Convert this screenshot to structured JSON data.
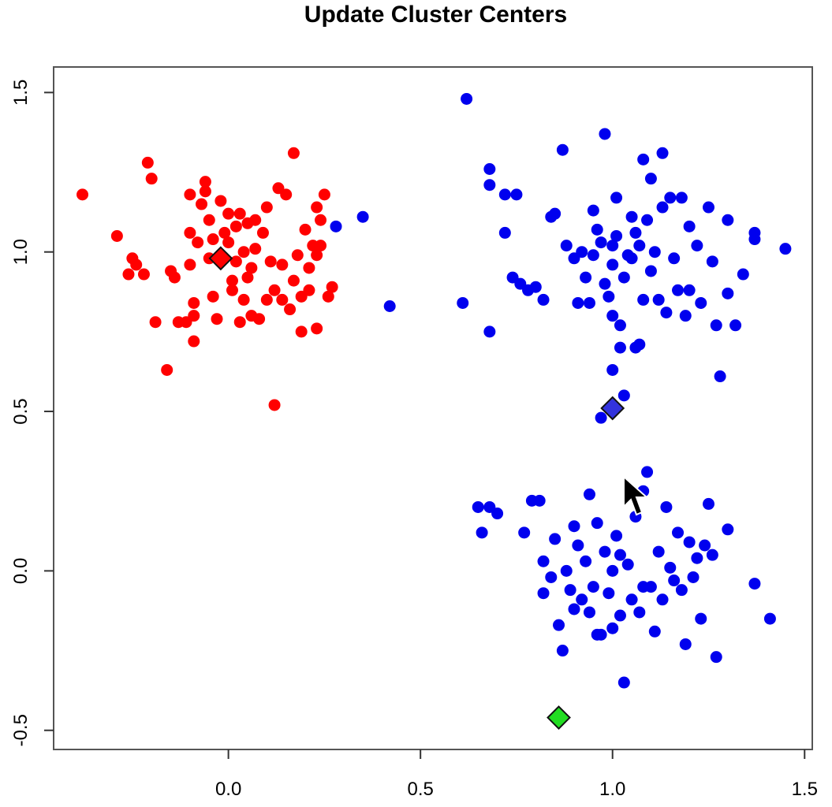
{
  "chart_data": {
    "type": "scatter",
    "title": "Update Cluster Centers",
    "xlabel": "",
    "ylabel": "",
    "xlim": [
      -0.455,
      1.52
    ],
    "ylim": [
      -0.56,
      1.58
    ],
    "xticks": [
      "0.0",
      "0.5",
      "1.0",
      "1.5"
    ],
    "yticks": [
      "-0.5",
      "0.0",
      "0.5",
      "1.0",
      "1.5"
    ],
    "xtick_values": [
      0.0,
      0.5,
      1.0,
      1.5
    ],
    "ytick_values": [
      -0.5,
      0.0,
      0.5,
      1.0,
      1.5
    ],
    "grid": false,
    "series": [
      {
        "color": "#ff0000",
        "points": [
          [
            -0.38,
            1.18
          ],
          [
            -0.29,
            1.05
          ],
          [
            -0.26,
            0.93
          ],
          [
            -0.25,
            0.98
          ],
          [
            -0.24,
            0.96
          ],
          [
            -0.22,
            0.93
          ],
          [
            -0.21,
            1.28
          ],
          [
            -0.2,
            1.23
          ],
          [
            -0.19,
            0.78
          ],
          [
            -0.16,
            0.63
          ],
          [
            -0.15,
            0.94
          ],
          [
            -0.14,
            0.92
          ],
          [
            -0.13,
            0.78
          ],
          [
            -0.11,
            0.78
          ],
          [
            -0.1,
            1.18
          ],
          [
            -0.1,
            1.06
          ],
          [
            -0.1,
            0.96
          ],
          [
            -0.09,
            0.84
          ],
          [
            -0.09,
            0.8
          ],
          [
            -0.09,
            0.72
          ],
          [
            -0.08,
            1.03
          ],
          [
            -0.07,
            1.15
          ],
          [
            -0.06,
            1.22
          ],
          [
            -0.06,
            1.19
          ],
          [
            -0.05,
            1.1
          ],
          [
            -0.05,
            0.98
          ],
          [
            -0.04,
            0.86
          ],
          [
            -0.04,
            1.04
          ],
          [
            -0.03,
            0.79
          ],
          [
            -0.02,
            1.16
          ],
          [
            -0.01,
            1.06
          ],
          [
            0.0,
            1.12
          ],
          [
            0.0,
            1.03
          ],
          [
            0.01,
            0.91
          ],
          [
            0.01,
            0.88
          ],
          [
            0.02,
            1.08
          ],
          [
            0.02,
            0.97
          ],
          [
            0.03,
            0.78
          ],
          [
            0.03,
            1.12
          ],
          [
            0.04,
            1.0
          ],
          [
            0.04,
            0.85
          ],
          [
            0.05,
            1.09
          ],
          [
            0.05,
            0.92
          ],
          [
            0.06,
            0.8
          ],
          [
            0.06,
            0.95
          ],
          [
            0.07,
            1.01
          ],
          [
            0.07,
            1.1
          ],
          [
            0.08,
            0.79
          ],
          [
            0.09,
            1.06
          ],
          [
            0.1,
            1.14
          ],
          [
            0.1,
            0.85
          ],
          [
            0.11,
            0.97
          ],
          [
            0.12,
            0.88
          ],
          [
            0.12,
            0.52
          ],
          [
            0.13,
            1.2
          ],
          [
            0.14,
            0.85
          ],
          [
            0.14,
            0.96
          ],
          [
            0.15,
            1.18
          ],
          [
            0.16,
            0.82
          ],
          [
            0.17,
            1.31
          ],
          [
            0.17,
            0.91
          ],
          [
            0.18,
            0.99
          ],
          [
            0.19,
            0.86
          ],
          [
            0.19,
            0.75
          ],
          [
            0.2,
            1.07
          ],
          [
            0.21,
            0.95
          ],
          [
            0.21,
            0.88
          ],
          [
            0.22,
            1.02
          ],
          [
            0.23,
            1.14
          ],
          [
            0.23,
            0.99
          ],
          [
            0.23,
            0.76
          ],
          [
            0.24,
            1.1
          ],
          [
            0.24,
            1.02
          ],
          [
            0.25,
            1.18
          ],
          [
            0.26,
            0.86
          ],
          [
            0.27,
            0.89
          ]
        ]
      },
      {
        "color": "#0000ee",
        "points": [
          [
            0.35,
            1.11
          ],
          [
            0.28,
            1.08
          ],
          [
            0.42,
            0.83
          ],
          [
            0.62,
            1.48
          ],
          [
            0.61,
            0.84
          ],
          [
            0.68,
            1.26
          ],
          [
            0.68,
            1.21
          ],
          [
            0.72,
            1.18
          ],
          [
            0.75,
            1.18
          ],
          [
            0.72,
            1.06
          ],
          [
            0.68,
            0.75
          ],
          [
            0.74,
            0.92
          ],
          [
            0.76,
            0.9
          ],
          [
            0.78,
            0.88
          ],
          [
            0.8,
            0.89
          ],
          [
            0.82,
            0.85
          ],
          [
            0.84,
            1.11
          ],
          [
            0.85,
            1.12
          ],
          [
            0.87,
            1.32
          ],
          [
            0.88,
            1.02
          ],
          [
            0.9,
            0.98
          ],
          [
            0.91,
            0.84
          ],
          [
            0.92,
            1.0
          ],
          [
            0.93,
            0.92
          ],
          [
            0.94,
            0.84
          ],
          [
            0.95,
            1.13
          ],
          [
            0.95,
            0.99
          ],
          [
            0.96,
            1.07
          ],
          [
            0.97,
            1.03
          ],
          [
            0.98,
            0.9
          ],
          [
            0.98,
            1.37
          ],
          [
            0.99,
            0.86
          ],
          [
            1.0,
            1.02
          ],
          [
            1.0,
            0.96
          ],
          [
            1.01,
            1.05
          ],
          [
            1.01,
            1.17
          ],
          [
            1.02,
            0.77
          ],
          [
            1.03,
            0.92
          ],
          [
            1.04,
            0.99
          ],
          [
            1.05,
            1.11
          ],
          [
            1.06,
            1.06
          ],
          [
            1.06,
            0.7
          ],
          [
            1.07,
            1.02
          ],
          [
            1.08,
            1.29
          ],
          [
            1.08,
            0.85
          ],
          [
            1.09,
            1.1
          ],
          [
            1.1,
            0.94
          ],
          [
            1.1,
            1.23
          ],
          [
            1.11,
            1.0
          ],
          [
            1.12,
            0.85
          ],
          [
            1.13,
            1.14
          ],
          [
            1.13,
            1.31
          ],
          [
            1.14,
            0.81
          ],
          [
            1.15,
            1.17
          ],
          [
            1.16,
            0.98
          ],
          [
            1.17,
            0.88
          ],
          [
            1.18,
            1.17
          ],
          [
            1.19,
            0.8
          ],
          [
            1.2,
            1.08
          ],
          [
            1.2,
            0.88
          ],
          [
            1.22,
            1.02
          ],
          [
            1.23,
            0.84
          ],
          [
            1.25,
            1.14
          ],
          [
            1.26,
            0.97
          ],
          [
            1.27,
            0.77
          ],
          [
            1.28,
            0.61
          ],
          [
            1.3,
            1.1
          ],
          [
            1.3,
            0.87
          ],
          [
            1.32,
            0.77
          ],
          [
            1.34,
            0.93
          ],
          [
            1.37,
            1.06
          ],
          [
            1.37,
            1.04
          ],
          [
            1.45,
            1.01
          ],
          [
            1.0,
            0.63
          ],
          [
            1.03,
            0.55
          ],
          [
            0.97,
            0.48
          ],
          [
            1.05,
            0.98
          ],
          [
            1.02,
            0.7
          ],
          [
            1.07,
            0.71
          ],
          [
            1.0,
            0.8
          ],
          [
            0.65,
            0.2
          ],
          [
            0.66,
            0.12
          ],
          [
            0.68,
            0.2
          ],
          [
            0.7,
            0.18
          ],
          [
            0.77,
            0.12
          ],
          [
            0.79,
            0.22
          ],
          [
            0.81,
            0.22
          ],
          [
            0.82,
            0.03
          ],
          [
            0.82,
            -0.07
          ],
          [
            0.84,
            -0.02
          ],
          [
            0.85,
            0.1
          ],
          [
            0.86,
            -0.17
          ],
          [
            0.87,
            -0.25
          ],
          [
            0.88,
            0.0
          ],
          [
            0.89,
            -0.06
          ],
          [
            0.9,
            0.14
          ],
          [
            0.91,
            0.08
          ],
          [
            0.92,
            -0.09
          ],
          [
            0.93,
            0.03
          ],
          [
            0.94,
            0.24
          ],
          [
            0.94,
            -0.13
          ],
          [
            0.95,
            -0.05
          ],
          [
            0.96,
            0.15
          ],
          [
            0.97,
            -0.2
          ],
          [
            0.98,
            0.06
          ],
          [
            0.99,
            -0.07
          ],
          [
            1.0,
            0.0
          ],
          [
            1.0,
            -0.18
          ],
          [
            1.01,
            0.11
          ],
          [
            1.02,
            -0.14
          ],
          [
            1.03,
            -0.35
          ],
          [
            1.04,
            0.02
          ],
          [
            1.05,
            -0.09
          ],
          [
            1.06,
            0.17
          ],
          [
            1.07,
            -0.13
          ],
          [
            1.08,
            0.25
          ],
          [
            1.09,
            0.31
          ],
          [
            1.1,
            -0.05
          ],
          [
            1.11,
            -0.19
          ],
          [
            1.12,
            0.06
          ],
          [
            1.13,
            -0.09
          ],
          [
            1.14,
            0.2
          ],
          [
            1.15,
            0.01
          ],
          [
            1.16,
            -0.03
          ],
          [
            1.17,
            0.12
          ],
          [
            1.18,
            -0.06
          ],
          [
            1.19,
            -0.23
          ],
          [
            1.2,
            0.09
          ],
          [
            1.21,
            -0.02
          ],
          [
            1.22,
            0.04
          ],
          [
            1.23,
            -0.15
          ],
          [
            1.24,
            0.08
          ],
          [
            1.25,
            0.21
          ],
          [
            1.26,
            0.05
          ],
          [
            1.27,
            -0.27
          ],
          [
            1.3,
            0.13
          ],
          [
            1.37,
            -0.04
          ],
          [
            1.41,
            -0.15
          ],
          [
            0.9,
            -0.12
          ],
          [
            1.02,
            0.05
          ],
          [
            0.96,
            -0.2
          ],
          [
            1.08,
            -0.05
          ]
        ]
      }
    ],
    "centers": [
      {
        "x": -0.02,
        "y": 0.98,
        "color": "#ff0000"
      },
      {
        "x": 1.0,
        "y": 0.51,
        "color": "#3333dd"
      },
      {
        "x": 0.86,
        "y": -0.46,
        "color": "#22dd22"
      }
    ]
  }
}
